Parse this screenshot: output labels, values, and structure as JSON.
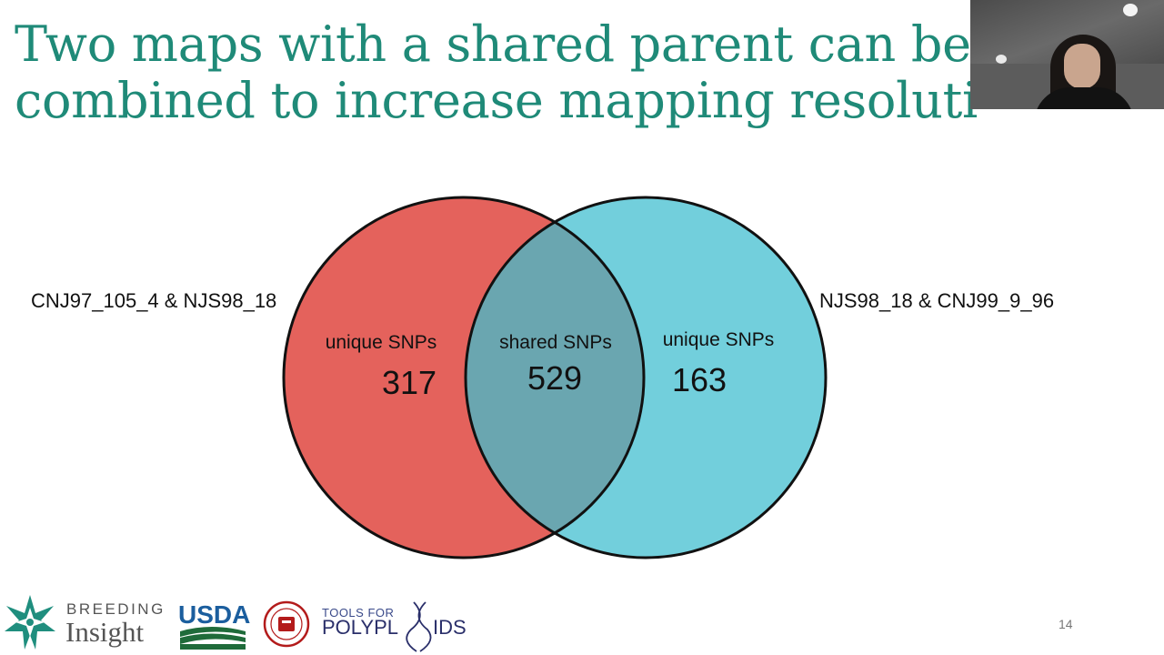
{
  "slide": {
    "title_line1": "Two maps with a shared parent can be potentially",
    "title_line2": "combined to increase mapping resolution",
    "page_number": "14"
  },
  "venn": {
    "left_set_label": "CNJ97_105_4 & NJS98_18",
    "right_set_label": "NJS98_18 & CNJ99_9_96",
    "left_region": {
      "label": "unique SNPs",
      "value": "317"
    },
    "shared_region": {
      "label": "shared SNPs",
      "value": "529"
    },
    "right_region": {
      "label": "unique SNPs",
      "value": "163"
    },
    "colors": {
      "left": "#e4625c",
      "right": "#72cfdc",
      "overlap": "#6aa6b0",
      "outline": "#111111"
    }
  },
  "logos": {
    "breeding_line1": "BREEDING",
    "breeding_line2": "Insight",
    "usda": "USDA",
    "tools_line1": "TOOLS FOR",
    "tools_line2": "POLYPL",
    "tools_line2b": "IDS"
  },
  "webcam": {
    "description_icon": "participant-video-icon"
  }
}
